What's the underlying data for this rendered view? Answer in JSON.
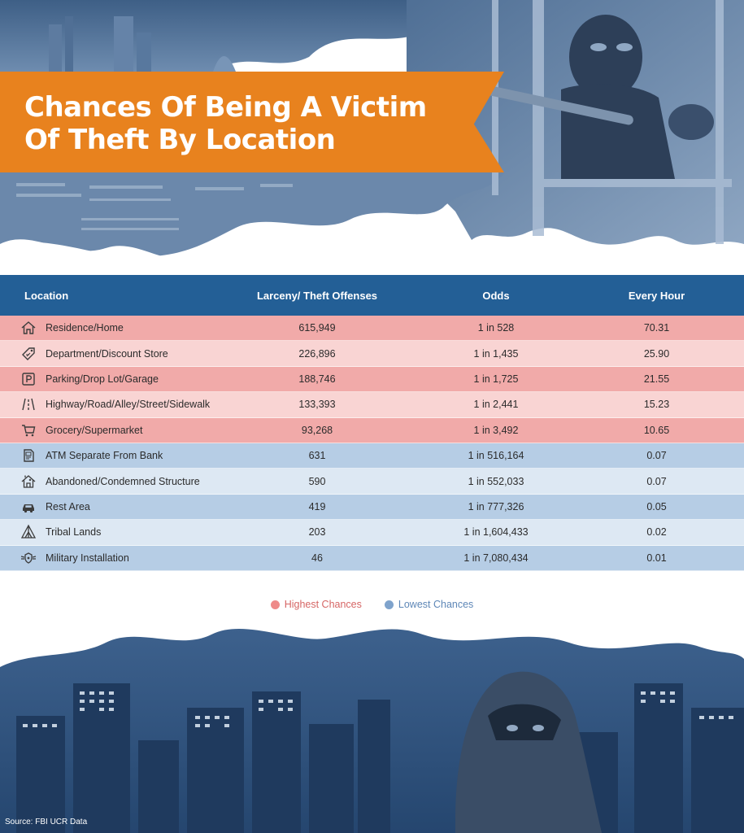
{
  "title": {
    "line1": "Chances Of Being A Victim",
    "line2": "Of Theft By Location"
  },
  "colors": {
    "banner": "#e8821e",
    "header": "#235f96",
    "high_dark": "#f1aaa9",
    "high_light": "#f9d4d3",
    "low_dark": "#b6cde5",
    "low_light": "#dde8f3"
  },
  "table": {
    "headers": {
      "location": "Location",
      "offenses": "Larceny/ Theft Offenses",
      "odds": "Odds",
      "hour": "Every Hour"
    },
    "rows": [
      {
        "icon": "house-icon",
        "location": "Residence/Home",
        "offenses": "615,949",
        "odds": "1 in 528",
        "hour": "70.31",
        "group": "high"
      },
      {
        "icon": "price-tag-icon",
        "location": "Department/Discount Store",
        "offenses": "226,896",
        "odds": "1 in 1,435",
        "hour": "25.90",
        "group": "high"
      },
      {
        "icon": "parking-icon",
        "location": "Parking/Drop Lot/Garage",
        "offenses": "188,746",
        "odds": "1 in 1,725",
        "hour": "21.55",
        "group": "high"
      },
      {
        "icon": "road-icon",
        "location": "Highway/Road/Alley/Street/Sidewalk",
        "offenses": "133,393",
        "odds": "1 in 2,441",
        "hour": "15.23",
        "group": "high"
      },
      {
        "icon": "shopping-cart-icon",
        "location": "Grocery/Supermarket",
        "offenses": "93,268",
        "odds": "1 in 3,492",
        "hour": "10.65",
        "group": "high"
      },
      {
        "icon": "atm-icon",
        "location": "ATM Separate From Bank",
        "offenses": "631",
        "odds": "1 in 516,164",
        "hour": "0.07",
        "group": "low"
      },
      {
        "icon": "abandoned-house-icon",
        "location": "Abandoned/Condemned Structure",
        "offenses": "590",
        "odds": "1 in 552,033",
        "hour": "0.07",
        "group": "low"
      },
      {
        "icon": "car-icon",
        "location": "Rest Area",
        "offenses": "419",
        "odds": "1 in 777,326",
        "hour": "0.05",
        "group": "low"
      },
      {
        "icon": "tent-icon",
        "location": "Tribal Lands",
        "offenses": "203",
        "odds": "1 in 1,604,433",
        "hour": "0.02",
        "group": "low"
      },
      {
        "icon": "military-badge-icon",
        "location": "Military Installation",
        "offenses": "46",
        "odds": "1 in 7,080,434",
        "hour": "0.01",
        "group": "low"
      }
    ]
  },
  "legend": {
    "high": "Highest Chances",
    "low": "Lowest Chances",
    "high_color": "#ee8a89",
    "low_color": "#7fa3cc"
  },
  "source": "Source: FBI UCR Data"
}
